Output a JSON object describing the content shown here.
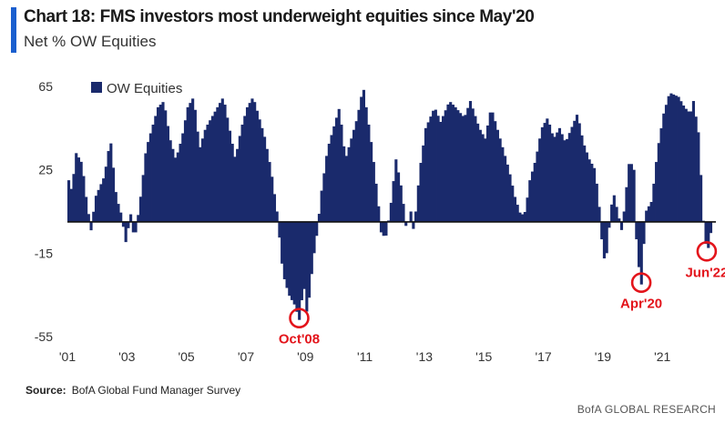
{
  "chart_data": {
    "type": "bar",
    "title": "Chart 18: FMS investors most underweight equities since May'20",
    "subtitle": "Net % OW Equities",
    "legend": "OW Equities",
    "legend_position": "top-left",
    "ylim": [
      -55,
      70
    ],
    "yticks": [
      65,
      25,
      -15,
      -55
    ],
    "ytick_labels": [
      "65",
      "25",
      "-15",
      "-55"
    ],
    "xlim": [
      2001.0,
      2022.8
    ],
    "xticks": [
      2001,
      2003,
      2005,
      2007,
      2009,
      2011,
      2013,
      2015,
      2017,
      2019,
      2021
    ],
    "xtick_labels": [
      "'01",
      "'03",
      "'05",
      "'07",
      "'09",
      "'11",
      "'13",
      "'15",
      "'17",
      "'19",
      "'21"
    ],
    "bar_color": "#1a2a6c",
    "zero_line_color": "#111111",
    "keyframes": [
      [
        2001.0,
        20
      ],
      [
        2001.1,
        15
      ],
      [
        2001.25,
        33
      ],
      [
        2001.45,
        28
      ],
      [
        2001.6,
        10
      ],
      [
        2001.75,
        -4
      ],
      [
        2001.9,
        12
      ],
      [
        2002.2,
        22
      ],
      [
        2002.4,
        40
      ],
      [
        2002.6,
        12
      ],
      [
        2002.8,
        2
      ],
      [
        2002.9,
        -11
      ],
      [
        2003.1,
        5
      ],
      [
        2003.2,
        -10
      ],
      [
        2003.4,
        10
      ],
      [
        2003.6,
        35
      ],
      [
        2003.8,
        45
      ],
      [
        2004.0,
        55
      ],
      [
        2004.2,
        58
      ],
      [
        2004.4,
        40
      ],
      [
        2004.6,
        30
      ],
      [
        2004.8,
        40
      ],
      [
        2005.0,
        55
      ],
      [
        2005.2,
        60
      ],
      [
        2005.4,
        35
      ],
      [
        2005.6,
        45
      ],
      [
        2005.8,
        50
      ],
      [
        2006.0,
        55
      ],
      [
        2006.2,
        60
      ],
      [
        2006.4,
        45
      ],
      [
        2006.6,
        30
      ],
      [
        2006.8,
        45
      ],
      [
        2007.0,
        55
      ],
      [
        2007.2,
        60
      ],
      [
        2007.4,
        50
      ],
      [
        2007.6,
        40
      ],
      [
        2007.8,
        25
      ],
      [
        2008.0,
        5
      ],
      [
        2008.1,
        -10
      ],
      [
        2008.2,
        -25
      ],
      [
        2008.4,
        -35
      ],
      [
        2008.6,
        -40
      ],
      [
        2008.75,
        -47
      ],
      [
        2008.9,
        -30
      ],
      [
        2009.0,
        -43
      ],
      [
        2009.1,
        -35
      ],
      [
        2009.2,
        -20
      ],
      [
        2009.35,
        -5
      ],
      [
        2009.5,
        15
      ],
      [
        2009.7,
        35
      ],
      [
        2009.9,
        45
      ],
      [
        2010.1,
        55
      ],
      [
        2010.3,
        30
      ],
      [
        2010.5,
        40
      ],
      [
        2010.7,
        50
      ],
      [
        2010.9,
        65
      ],
      [
        2011.0,
        55
      ],
      [
        2011.2,
        35
      ],
      [
        2011.4,
        10
      ],
      [
        2011.5,
        -5
      ],
      [
        2011.65,
        -8
      ],
      [
        2011.8,
        5
      ],
      [
        2012.0,
        30
      ],
      [
        2012.2,
        15
      ],
      [
        2012.35,
        -4
      ],
      [
        2012.5,
        5
      ],
      [
        2012.6,
        -5
      ],
      [
        2012.8,
        25
      ],
      [
        2013.0,
        45
      ],
      [
        2013.3,
        55
      ],
      [
        2013.5,
        48
      ],
      [
        2013.8,
        58
      ],
      [
        2014.0,
        55
      ],
      [
        2014.3,
        50
      ],
      [
        2014.5,
        58
      ],
      [
        2014.8,
        45
      ],
      [
        2015.0,
        40
      ],
      [
        2015.2,
        55
      ],
      [
        2015.4,
        45
      ],
      [
        2015.6,
        35
      ],
      [
        2015.8,
        25
      ],
      [
        2016.0,
        12
      ],
      [
        2016.2,
        3
      ],
      [
        2016.35,
        5
      ],
      [
        2016.5,
        20
      ],
      [
        2016.7,
        30
      ],
      [
        2016.9,
        45
      ],
      [
        2017.1,
        50
      ],
      [
        2017.3,
        40
      ],
      [
        2017.5,
        45
      ],
      [
        2017.7,
        38
      ],
      [
        2017.9,
        45
      ],
      [
        2018.1,
        52
      ],
      [
        2018.3,
        38
      ],
      [
        2018.5,
        30
      ],
      [
        2018.7,
        25
      ],
      [
        2018.85,
        5
      ],
      [
        2018.95,
        -15
      ],
      [
        2019.05,
        -20
      ],
      [
        2019.15,
        -5
      ],
      [
        2019.3,
        15
      ],
      [
        2019.45,
        5
      ],
      [
        2019.6,
        -5
      ],
      [
        2019.7,
        10
      ],
      [
        2019.85,
        30
      ],
      [
        2020.0,
        25
      ],
      [
        2020.1,
        -15
      ],
      [
        2020.25,
        -30
      ],
      [
        2020.4,
        5
      ],
      [
        2020.6,
        10
      ],
      [
        2020.8,
        35
      ],
      [
        2021.0,
        52
      ],
      [
        2021.2,
        62
      ],
      [
        2021.5,
        60
      ],
      [
        2021.7,
        55
      ],
      [
        2021.9,
        52
      ],
      [
        2022.0,
        58
      ],
      [
        2022.2,
        40
      ],
      [
        2022.3,
        5
      ],
      [
        2022.45,
        -15
      ],
      [
        2022.55,
        -10
      ],
      [
        2022.6,
        -3
      ]
    ],
    "annotations": [
      {
        "label": "Oct'08",
        "x": 2008.75,
        "y": -47
      },
      {
        "label": "Apr'20",
        "x": 2020.25,
        "y": -30
      },
      {
        "label": "Jun'22",
        "x": 2022.45,
        "y": -15
      }
    ]
  },
  "source": {
    "label": "Source:",
    "text": "BofA Global Fund Manager Survey"
  },
  "brand": "BofA GLOBAL RESEARCH"
}
